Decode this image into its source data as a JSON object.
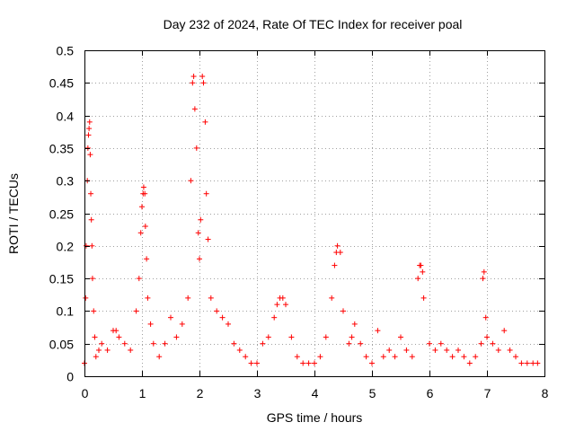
{
  "chart_data": {
    "type": "scatter",
    "title": "Day 232 of 2024, Rate Of TEC Index for receiver poal",
    "xlabel": "GPS time / hours",
    "ylabel": "ROTI / TECUs",
    "xlim": [
      0,
      8
    ],
    "ylim": [
      0,
      0.5
    ],
    "x_ticks": [
      "0",
      "1",
      "2",
      "3",
      "4",
      "5",
      "6",
      "7",
      "8"
    ],
    "y_ticks": [
      "0",
      "0.05",
      "0.1",
      "0.15",
      "0.2",
      "0.25",
      "0.3",
      "0.35",
      "0.4",
      "0.45",
      "0.5"
    ],
    "grid": true,
    "marker": "+",
    "color": "#ff0000",
    "series": [
      {
        "x": [
          0.0,
          0.02,
          0.03,
          0.05,
          0.06,
          0.07,
          0.08,
          0.09,
          0.1,
          0.11,
          0.12,
          0.13,
          0.14,
          0.16,
          0.18,
          0.2,
          0.25,
          0.3,
          0.4,
          0.5,
          0.55,
          0.6,
          0.7,
          0.8,
          0.9,
          0.95,
          0.98,
          1.0,
          1.02,
          1.03,
          1.05,
          1.06,
          1.08,
          1.1,
          1.15,
          1.2,
          1.3,
          1.4,
          1.5,
          1.6,
          1.7,
          1.8,
          1.85,
          1.88,
          1.9,
          1.92,
          1.95,
          1.98,
          2.0,
          2.02,
          2.05,
          2.07,
          2.1,
          2.12,
          2.15,
          2.2,
          2.3,
          2.4,
          2.5,
          2.6,
          2.7,
          2.8,
          2.9,
          3.0,
          3.1,
          3.2,
          3.3,
          3.35,
          3.4,
          3.45,
          3.5,
          3.6,
          3.7,
          3.8,
          3.9,
          4.0,
          4.1,
          4.2,
          4.3,
          4.35,
          4.38,
          4.4,
          4.45,
          4.5,
          4.6,
          4.65,
          4.7,
          4.8,
          4.9,
          5.0,
          5.1,
          5.2,
          5.3,
          5.4,
          5.5,
          5.6,
          5.7,
          5.8,
          5.83,
          5.85,
          5.88,
          5.9,
          6.0,
          6.1,
          6.2,
          6.3,
          6.4,
          6.5,
          6.6,
          6.7,
          6.8,
          6.9,
          6.93,
          6.95,
          6.98,
          7.0,
          7.1,
          7.2,
          7.3,
          7.4,
          7.5,
          7.6,
          7.7,
          7.8,
          7.88
        ],
        "y": [
          0.02,
          0.12,
          0.2,
          0.3,
          0.35,
          0.37,
          0.38,
          0.39,
          0.34,
          0.28,
          0.24,
          0.2,
          0.15,
          0.1,
          0.06,
          0.03,
          0.04,
          0.05,
          0.04,
          0.07,
          0.07,
          0.06,
          0.05,
          0.04,
          0.1,
          0.15,
          0.22,
          0.26,
          0.28,
          0.29,
          0.28,
          0.23,
          0.18,
          0.12,
          0.08,
          0.05,
          0.03,
          0.05,
          0.09,
          0.06,
          0.08,
          0.12,
          0.3,
          0.45,
          0.46,
          0.41,
          0.35,
          0.22,
          0.18,
          0.24,
          0.46,
          0.45,
          0.39,
          0.28,
          0.21,
          0.12,
          0.1,
          0.09,
          0.08,
          0.05,
          0.04,
          0.03,
          0.02,
          0.02,
          0.05,
          0.06,
          0.09,
          0.11,
          0.12,
          0.12,
          0.11,
          0.06,
          0.03,
          0.02,
          0.02,
          0.02,
          0.03,
          0.06,
          0.12,
          0.17,
          0.19,
          0.2,
          0.19,
          0.1,
          0.05,
          0.06,
          0.08,
          0.05,
          0.03,
          0.02,
          0.07,
          0.03,
          0.04,
          0.03,
          0.06,
          0.04,
          0.03,
          0.15,
          0.17,
          0.17,
          0.16,
          0.12,
          0.05,
          0.04,
          0.05,
          0.04,
          0.03,
          0.04,
          0.03,
          0.02,
          0.03,
          0.05,
          0.15,
          0.16,
          0.09,
          0.06,
          0.05,
          0.04,
          0.07,
          0.04,
          0.03,
          0.02,
          0.02,
          0.02,
          0.02
        ]
      }
    ]
  }
}
